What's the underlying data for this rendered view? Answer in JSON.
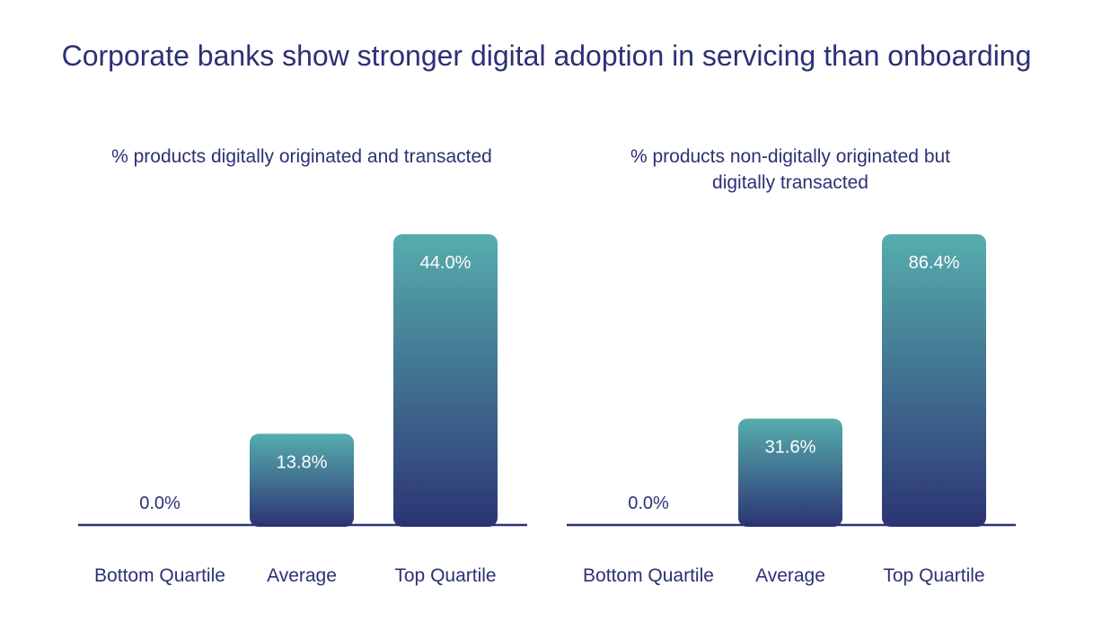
{
  "chart_data": [
    {
      "type": "bar",
      "title": "Corporate banks show stronger digital adoption in servicing than onboarding",
      "subtitle": "% products digitally originated and transacted",
      "categories": [
        "Bottom Quartile",
        "Average",
        "Top Quartile"
      ],
      "values": [
        0.0,
        13.8,
        44.0
      ],
      "data_labels": [
        "0.0%",
        "13.8%",
        "44.0%"
      ],
      "grid": false
    },
    {
      "type": "bar",
      "subtitle": "% products non-digitally originated but digitally transacted",
      "categories": [
        "Bottom Quartile",
        "Average",
        "Top Quartile"
      ],
      "values": [
        0.0,
        31.6,
        86.4
      ],
      "data_labels": [
        "0.0%",
        "31.6%",
        "86.4%"
      ],
      "grid": false
    }
  ],
  "colors": {
    "text": "#2b3175",
    "bar_top": "#56adad",
    "bar_bottom": "#2c3474",
    "axis": "#2b3175"
  }
}
